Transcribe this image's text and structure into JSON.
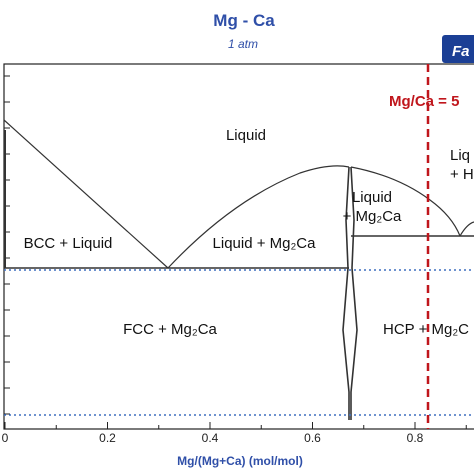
{
  "chart_data": {
    "type": "line",
    "title": "Mg - Ca",
    "subtitle": "1 atm",
    "xlabel": "Mg/(Mg+Ca) (mol/mol)",
    "ylabel": "",
    "xlim": [
      0,
      0.9
    ],
    "x_ticks": [
      "0",
      "0.2",
      "0.4",
      "0.6",
      "0.8"
    ],
    "x_tick_values": [
      0,
      0.2,
      0.4,
      0.6,
      0.8
    ],
    "logo_text": "Fa",
    "marker": {
      "label": "Mg/Ca = 5",
      "x": 0.833,
      "color": "#c0161c"
    },
    "regions": [
      {
        "id": "liquid",
        "lines": [
          "Liquid"
        ]
      },
      {
        "id": "bcc-liquid",
        "lines": [
          "BCC + Liquid"
        ]
      },
      {
        "id": "liquid-mg2ca-left",
        "lines": [
          "Liquid + Mg₂Ca"
        ]
      },
      {
        "id": "liquid-mg2ca-right",
        "lines": [
          "Liquid",
          "+ Mg₂Ca"
        ]
      },
      {
        "id": "liquid-hcp",
        "lines": [
          "Liq",
          "+ H"
        ]
      },
      {
        "id": "fcc-mg2ca",
        "lines": [
          "FCC + Mg₂Ca"
        ]
      },
      {
        "id": "hcp-mg2ca",
        "lines": [
          "HCP + Mg₂C"
        ]
      }
    ],
    "grid": false,
    "legend": "none"
  }
}
